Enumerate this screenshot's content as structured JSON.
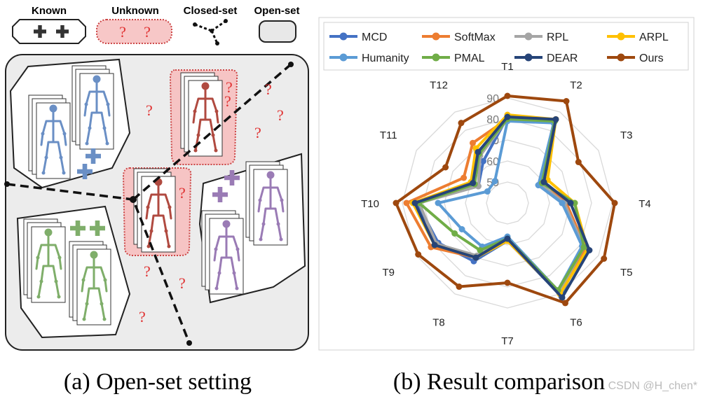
{
  "legend": {
    "known": "Known",
    "unknown": "Unknown",
    "closed_set": "Closed-set",
    "open_set": "Open-set"
  },
  "unknown_mark": "?",
  "captions": [
    "(a) Open-set setting",
    "(b) Result comparison"
  ],
  "watermark": "CSDN @H_chen*",
  "chart_data": {
    "type": "radar",
    "categories": [
      "T1",
      "T2",
      "T3",
      "T4",
      "T5",
      "T6",
      "T7",
      "T8",
      "T9",
      "T10",
      "T11",
      "T12"
    ],
    "rlim": [
      40,
      95
    ],
    "rticks": [
      50,
      60,
      70,
      80,
      90
    ],
    "grid": true,
    "series": [
      {
        "name": "MCD",
        "color": "#4472c4",
        "values": [
          81,
          85,
          57,
          66,
          82,
          91,
          58,
          72,
          78,
          83,
          56,
          63
        ]
      },
      {
        "name": "SoftMax",
        "color": "#ed7d31",
        "values": [
          80,
          86,
          60,
          68,
          83,
          90,
          58,
          70,
          82,
          88,
          64,
          73
        ]
      },
      {
        "name": "RPL",
        "color": "#a5a5a5",
        "values": [
          80,
          85,
          58,
          67,
          82,
          89,
          57,
          69,
          79,
          82,
          56,
          66
        ]
      },
      {
        "name": "ARPL",
        "color": "#ffc000",
        "values": [
          82,
          86,
          62,
          72,
          84,
          90,
          58,
          70,
          80,
          85,
          60,
          70
        ]
      },
      {
        "name": "Humanity",
        "color": "#5b9bd5",
        "values": [
          79,
          84,
          57,
          66,
          81,
          88,
          56,
          64,
          65,
          73,
          51,
          52
        ]
      },
      {
        "name": "PMAL",
        "color": "#70ad47",
        "values": [
          80,
          85,
          59,
          72,
          82,
          88,
          57,
          66,
          69,
          82,
          58,
          67
        ]
      },
      {
        "name": "DEAR",
        "color": "#264478",
        "values": [
          81,
          86,
          60,
          70,
          85,
          92,
          57,
          70,
          80,
          84,
          59,
          68
        ]
      },
      {
        "name": "Ours",
        "color": "#9e480e",
        "values": [
          91,
          96,
          79,
          91,
          93,
          95,
          78,
          86,
          89,
          93,
          74,
          84
        ]
      }
    ]
  }
}
